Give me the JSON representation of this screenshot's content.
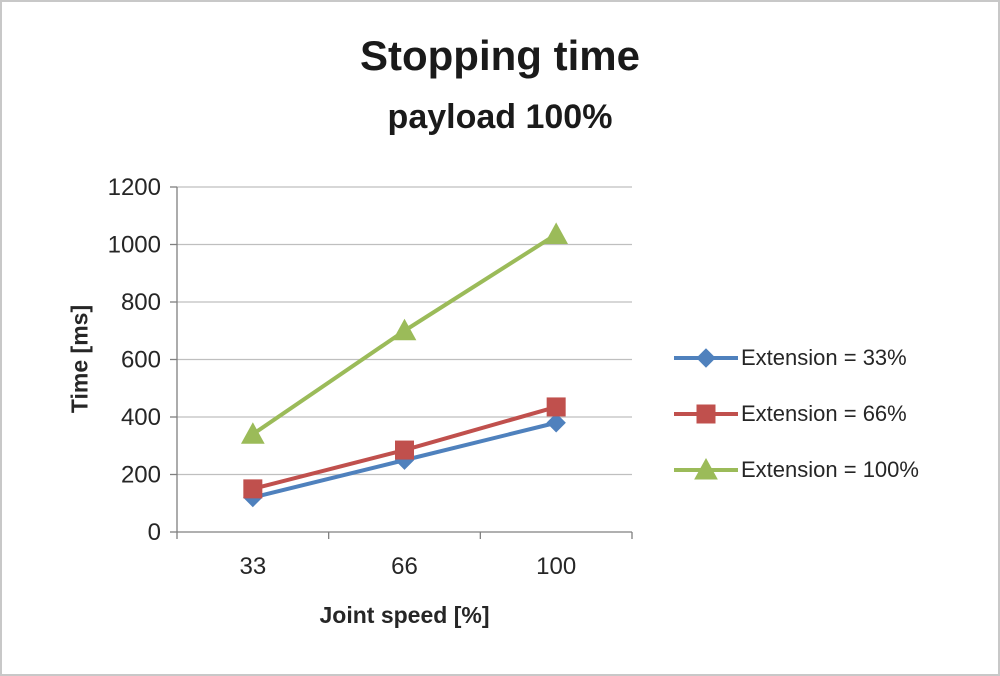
{
  "chart_data": {
    "type": "line",
    "title": "Stopping time",
    "subtitle": "payload 100%",
    "xlabel": "Joint speed [%]",
    "ylabel": "Time [ms]",
    "categories": [
      "33",
      "66",
      "100"
    ],
    "series": [
      {
        "name": "Extension = 33%",
        "values": [
          120,
          250,
          380
        ],
        "color": "#4F81BD",
        "marker": "diamond"
      },
      {
        "name": "Extension = 66%",
        "values": [
          150,
          285,
          435
        ],
        "color": "#C0504D",
        "marker": "square"
      },
      {
        "name": "Extension = 100%",
        "values": [
          340,
          700,
          1035
        ],
        "color": "#9BBB59",
        "marker": "triangle"
      }
    ],
    "ylim": [
      0,
      1200
    ],
    "ytick_step": 200,
    "grid": true,
    "legend_position": "right",
    "colors": {
      "gridline": "#bfbfbf",
      "axis": "#808080",
      "text": "#262626"
    }
  }
}
